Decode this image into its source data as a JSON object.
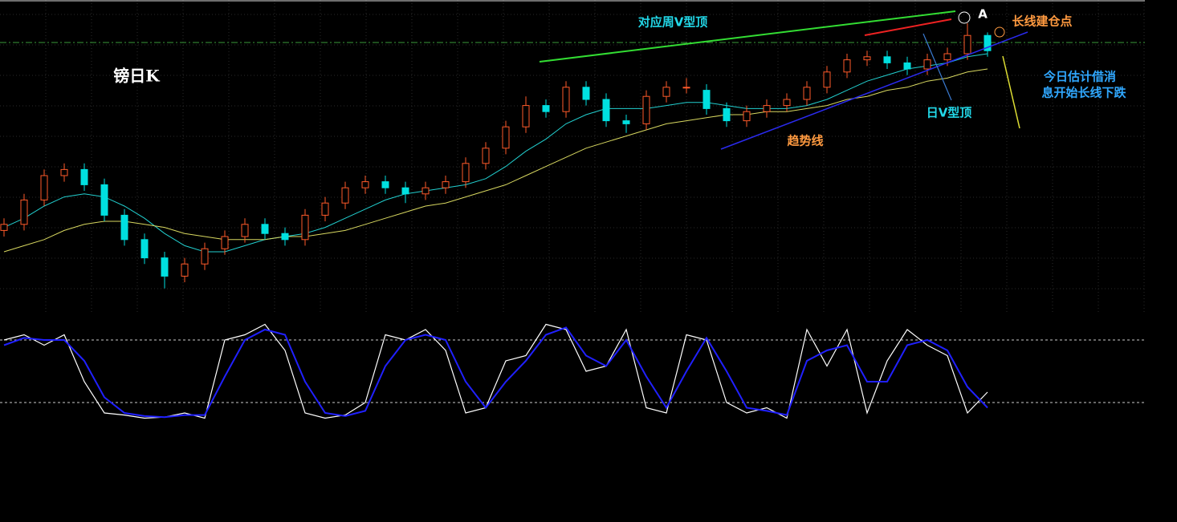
{
  "chart_data": [
    {
      "type": "candlestick",
      "title": "镑日K",
      "annotations": [
        "对应周V型顶",
        "A",
        "长线建仓点",
        "今日估计借消",
        "息开始长线下跌",
        "日V型顶",
        "趋势线"
      ],
      "up_color": "#ff5a2a",
      "down_color": "#00e0e0",
      "ylim": [
        0,
        100
      ],
      "open": [
        27,
        29,
        37,
        45,
        47,
        42,
        32,
        24,
        18,
        12,
        16,
        21,
        25,
        29,
        26,
        24,
        32,
        36,
        41,
        43,
        41,
        39,
        41,
        43,
        49,
        54,
        61,
        68,
        66,
        74,
        70,
        63,
        62,
        71,
        74,
        73,
        67,
        63,
        66,
        68,
        70,
        74,
        79,
        83,
        84,
        82,
        80,
        83,
        85,
        91
      ],
      "high": [
        31,
        39,
        47,
        49,
        49,
        44,
        34,
        26,
        20,
        18,
        23,
        27,
        31,
        31,
        28,
        34,
        38,
        43,
        45,
        45,
        43,
        43,
        45,
        51,
        56,
        63,
        71,
        70,
        76,
        76,
        72,
        65,
        73,
        76,
        77,
        75,
        69,
        68,
        70,
        72,
        76,
        81,
        85,
        86,
        86,
        84,
        85,
        87,
        95,
        92
      ],
      "low": [
        25,
        27,
        35,
        43,
        40,
        30,
        22,
        16,
        8,
        10,
        14,
        19,
        23,
        24,
        22,
        22,
        30,
        34,
        39,
        39,
        36,
        37,
        39,
        41,
        47,
        52,
        59,
        64,
        64,
        68,
        61,
        59,
        60,
        69,
        72,
        65,
        61,
        61,
        64,
        66,
        68,
        72,
        77,
        81,
        80,
        78,
        78,
        81,
        83,
        84
      ],
      "close": [
        29,
        37,
        45,
        47,
        42,
        32,
        24,
        18,
        12,
        16,
        21,
        25,
        29,
        26,
        24,
        32,
        36,
        41,
        43,
        41,
        39,
        41,
        43,
        49,
        54,
        61,
        68,
        66,
        74,
        70,
        63,
        62,
        71,
        74,
        74,
        67,
        63,
        66,
        68,
        70,
        74,
        79,
        83,
        84,
        82,
        80,
        83,
        85,
        91,
        86
      ],
      "series": [
        {
          "color": "#22d0d0",
          "values": [
            28,
            31,
            35,
            38,
            39,
            38,
            35,
            31,
            26,
            22,
            20,
            20,
            22,
            24,
            25,
            26,
            28,
            31,
            34,
            37,
            39,
            40,
            41,
            42,
            44,
            48,
            53,
            57,
            62,
            65,
            67,
            67,
            67,
            68,
            69,
            69,
            68,
            67,
            67,
            67,
            68,
            70,
            73,
            76,
            78,
            80,
            81,
            82,
            84,
            85
          ]
        },
        {
          "color": "#d8d860",
          "values": [
            20,
            22,
            24,
            27,
            29,
            30,
            30,
            29,
            28,
            26,
            25,
            24,
            24,
            24,
            25,
            25,
            26,
            27,
            29,
            31,
            33,
            35,
            36,
            38,
            40,
            42,
            45,
            48,
            51,
            54,
            56,
            58,
            60,
            62,
            63,
            64,
            65,
            65,
            66,
            66,
            67,
            68,
            70,
            71,
            73,
            74,
            76,
            77,
            79,
            80
          ]
        }
      ]
    },
    {
      "type": "line",
      "ylim": [
        0,
        100
      ],
      "yticks": [
        20,
        80
      ],
      "series": [
        {
          "color": "#ffffff",
          "values": [
            80,
            85,
            75,
            85,
            40,
            10,
            8,
            5,
            6,
            10,
            5,
            80,
            85,
            95,
            70,
            10,
            5,
            8,
            20,
            85,
            80,
            90,
            70,
            10,
            15,
            60,
            65,
            95,
            90,
            50,
            55,
            90,
            15,
            10,
            85,
            80,
            20,
            10,
            15,
            5,
            90,
            55,
            90,
            10,
            60,
            90,
            75,
            65,
            10,
            30
          ]
        },
        {
          "color": "#2020ff",
          "values": [
            75,
            82,
            80,
            80,
            60,
            25,
            10,
            7,
            6,
            8,
            8,
            45,
            80,
            90,
            85,
            40,
            10,
            7,
            12,
            55,
            80,
            85,
            80,
            40,
            15,
            40,
            60,
            85,
            92,
            65,
            55,
            80,
            45,
            15,
            50,
            82,
            50,
            15,
            12,
            8,
            60,
            70,
            75,
            40,
            40,
            75,
            80,
            70,
            35,
            15
          ]
        }
      ]
    }
  ]
}
